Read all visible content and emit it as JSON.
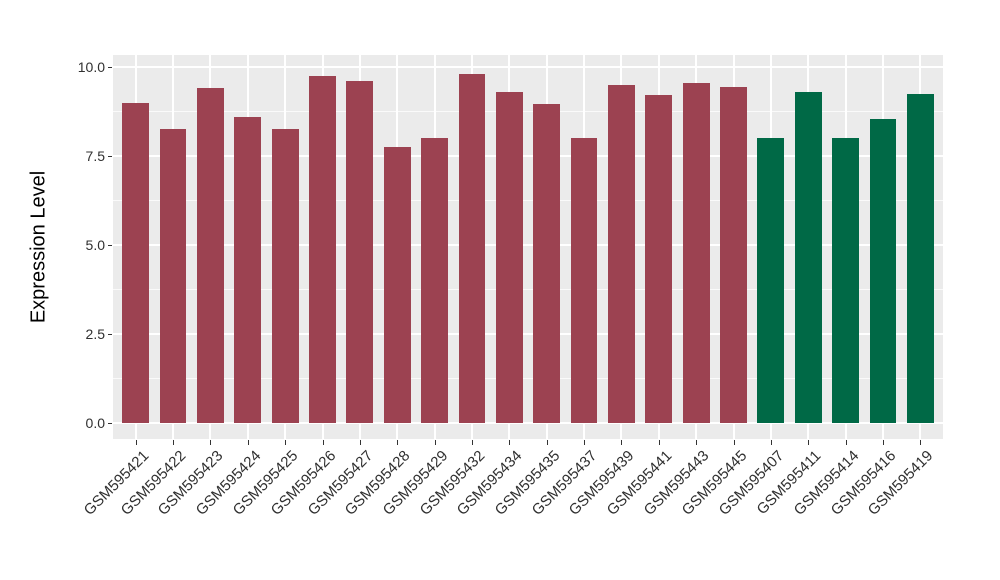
{
  "chart_data": {
    "type": "bar",
    "title": "",
    "xlabel": "",
    "ylabel": "Expression Level",
    "ylim": [
      0,
      10.3
    ],
    "yticks": [
      0,
      2.5,
      5,
      7.5,
      10
    ],
    "ytick_labels": [
      "0.0",
      "2.5",
      "5.0",
      "7.5",
      "10.0"
    ],
    "yticks_minor": [
      1.25,
      3.75,
      6.25,
      8.75
    ],
    "grid": "on",
    "legend_position": "none",
    "categories": [
      "GSM595421",
      "GSM595422",
      "GSM595423",
      "GSM595424",
      "GSM595425",
      "GSM595426",
      "GSM595427",
      "GSM595428",
      "GSM595429",
      "GSM595432",
      "GSM595434",
      "GSM595435",
      "GSM595437",
      "GSM595439",
      "GSM595441",
      "GSM595443",
      "GSM595445",
      "GSM595407",
      "GSM595411",
      "GSM595414",
      "GSM595416",
      "GSM595419"
    ],
    "values": [
      9.0,
      8.25,
      9.4,
      8.6,
      8.25,
      9.75,
      9.6,
      7.75,
      8.0,
      9.8,
      9.3,
      8.95,
      8.0,
      9.5,
      9.2,
      9.55,
      9.45,
      8.0,
      9.3,
      8.0,
      8.55,
      9.25
    ],
    "bar_groups": [
      "maroon",
      "maroon",
      "maroon",
      "maroon",
      "maroon",
      "maroon",
      "maroon",
      "maroon",
      "maroon",
      "maroon",
      "maroon",
      "maroon",
      "maroon",
      "maroon",
      "maroon",
      "maroon",
      "maroon",
      "green",
      "green",
      "green",
      "green",
      "green"
    ],
    "palette": {
      "maroon": "#9C4251",
      "green": "#006946"
    },
    "colors": {
      "background": "#FFFFFF",
      "panel_bg": "#EBEBEB",
      "grid": "#FFFFFF",
      "axis_text": "#303030",
      "axis_title": "#000000",
      "tick_mark": "#333333"
    }
  }
}
